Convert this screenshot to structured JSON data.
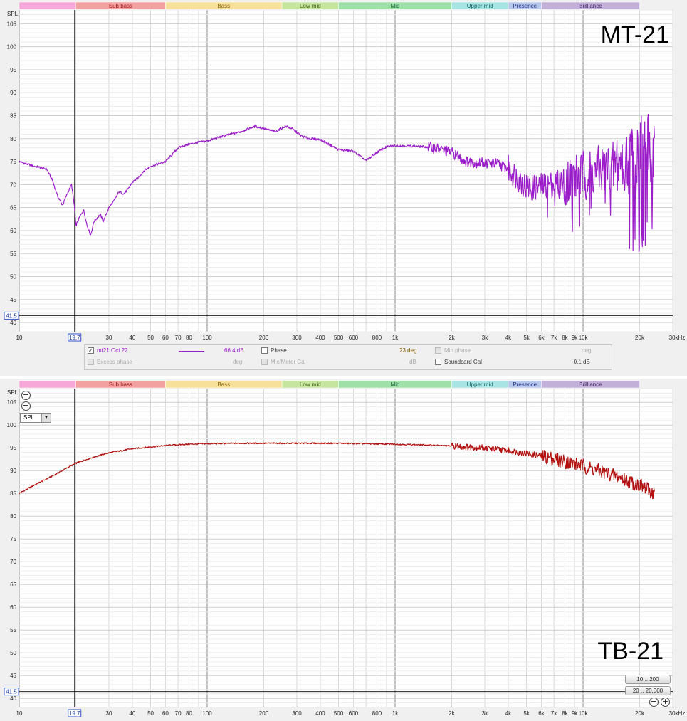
{
  "chart_data": [
    {
      "type": "line",
      "title": "MT-21",
      "ylabel": "SPL",
      "xscale": "log",
      "xlim": [
        10,
        30000
      ],
      "ylim": [
        38,
        108
      ],
      "cursor_x": "19.7",
      "cursor_y": "41.5",
      "x_ticks": [
        "10",
        "19.7",
        "30",
        "40",
        "50",
        "60",
        "70",
        "80",
        "100",
        "200",
        "300",
        "400",
        "500",
        "600",
        "800",
        "1k",
        "2k",
        "3k",
        "4k",
        "5k",
        "6k",
        "7k",
        "8k",
        "9k",
        "10k",
        "20k",
        "30kHz"
      ],
      "y_ticks": [
        "40",
        "45",
        "50",
        "55",
        "60",
        "65",
        "70",
        "75",
        "80",
        "85",
        "90",
        "95",
        "100",
        "105"
      ],
      "bands": [
        "",
        "Sub bass",
        "Bass",
        "Low mid",
        "Mid",
        "Upper mid",
        "Presence",
        "Brilliance"
      ],
      "series": [
        {
          "name": "mt21 Oct 22",
          "color": "#9b1cc9",
          "x": [
            10,
            12,
            14,
            15,
            16,
            17,
            18,
            19,
            19.7,
            20,
            21,
            22,
            23,
            24,
            25,
            27,
            28,
            30,
            32,
            34,
            36,
            38,
            40,
            43,
            46,
            50,
            55,
            60,
            65,
            70,
            80,
            90,
            100,
            120,
            150,
            180,
            200,
            230,
            260,
            280,
            320,
            350,
            400,
            500,
            600,
            700,
            800,
            900,
            1000,
            1200,
            1500,
            1800,
            2000,
            2400,
            2700,
            3000,
            3500,
            4000,
            4500,
            5000,
            5500,
            6000,
            7000,
            8000,
            9000,
            10000,
            12000,
            15000,
            18000,
            20000,
            22000,
            24000
          ],
          "y": [
            75,
            74,
            73.4,
            71,
            67.5,
            65.5,
            68,
            70,
            65,
            61,
            63,
            64.5,
            61,
            59,
            62,
            63.5,
            62,
            65,
            66.5,
            68.5,
            68,
            69,
            70.5,
            71.5,
            73,
            74,
            74.5,
            75,
            76.5,
            78,
            78.8,
            79.2,
            79.5,
            80.5,
            81.5,
            82.7,
            82.2,
            81.5,
            82.7,
            82.3,
            80.5,
            80,
            79.8,
            77.6,
            77.3,
            75.2,
            77,
            78.2,
            78.5,
            78.4,
            78.2,
            77.5,
            77,
            75,
            74.8,
            74.7,
            74.6,
            73.5,
            71.5,
            69.5,
            69.3,
            69.6,
            70.2,
            70.8,
            71.5,
            72,
            73,
            74.5,
            76,
            77,
            78,
            77.5
          ]
        }
      ],
      "legend": {
        "value": "66.4 dB",
        "phase_label": "Phase",
        "phase_value": "23 deg",
        "min_phase_label": "Min phase",
        "min_phase_unit": "deg",
        "excess_phase_label": "Excess phase",
        "excess_phase_unit": "deg",
        "mic_cal_label": "Mic/Meter Cal",
        "mic_cal_unit": "dB",
        "soundcard_cal_label": "Soundcard Cal",
        "soundcard_cal_value": "-0.1 dB"
      }
    },
    {
      "type": "line",
      "title": "TB-21",
      "ylabel": "SPL",
      "xscale": "log",
      "xlim": [
        10,
        30000
      ],
      "ylim": [
        38,
        108
      ],
      "cursor_x": "19.7",
      "cursor_y": "41.5",
      "x_ticks": [
        "10",
        "19.7",
        "30",
        "40",
        "50",
        "60",
        "70",
        "80",
        "100",
        "200",
        "300",
        "400",
        "500",
        "600",
        "800",
        "1k",
        "2k",
        "3k",
        "4k",
        "5k",
        "6k",
        "7k",
        "8k",
        "9k",
        "10k",
        "20k",
        "30kHz"
      ],
      "y_ticks": [
        "40",
        "45",
        "50",
        "55",
        "60",
        "65",
        "70",
        "75",
        "80",
        "85",
        "90",
        "95",
        "100",
        "105"
      ],
      "bands": [
        "",
        "Sub bass",
        "Bass",
        "Low mid",
        "Mid",
        "Upper mid",
        "Presence",
        "Brilliance"
      ],
      "series": [
        {
          "color": "#b31010",
          "x": [
            10,
            12,
            15,
            18,
            20,
            25,
            30,
            40,
            50,
            60,
            80,
            100,
            150,
            200,
            300,
            400,
            500,
            700,
            1000,
            1500,
            2000,
            3000,
            4000,
            5000,
            6000,
            7000,
            8000,
            10000,
            12000,
            15000,
            20000,
            24000
          ],
          "y": [
            85,
            86.8,
            88.8,
            90.6,
            91.6,
            93,
            93.9,
            94.8,
            95.2,
            95.5,
            95.8,
            95.9,
            96,
            96,
            96,
            96,
            96,
            95.9,
            95.8,
            95.6,
            95.4,
            95,
            94.4,
            93.8,
            93.2,
            92.6,
            92,
            91,
            90,
            88.8,
            86.8,
            84.9
          ]
        }
      ],
      "controls": {
        "spl_select": "SPL",
        "range_button_1": "10 .. 200",
        "range_button_2": "20 .. 20,000"
      }
    }
  ]
}
